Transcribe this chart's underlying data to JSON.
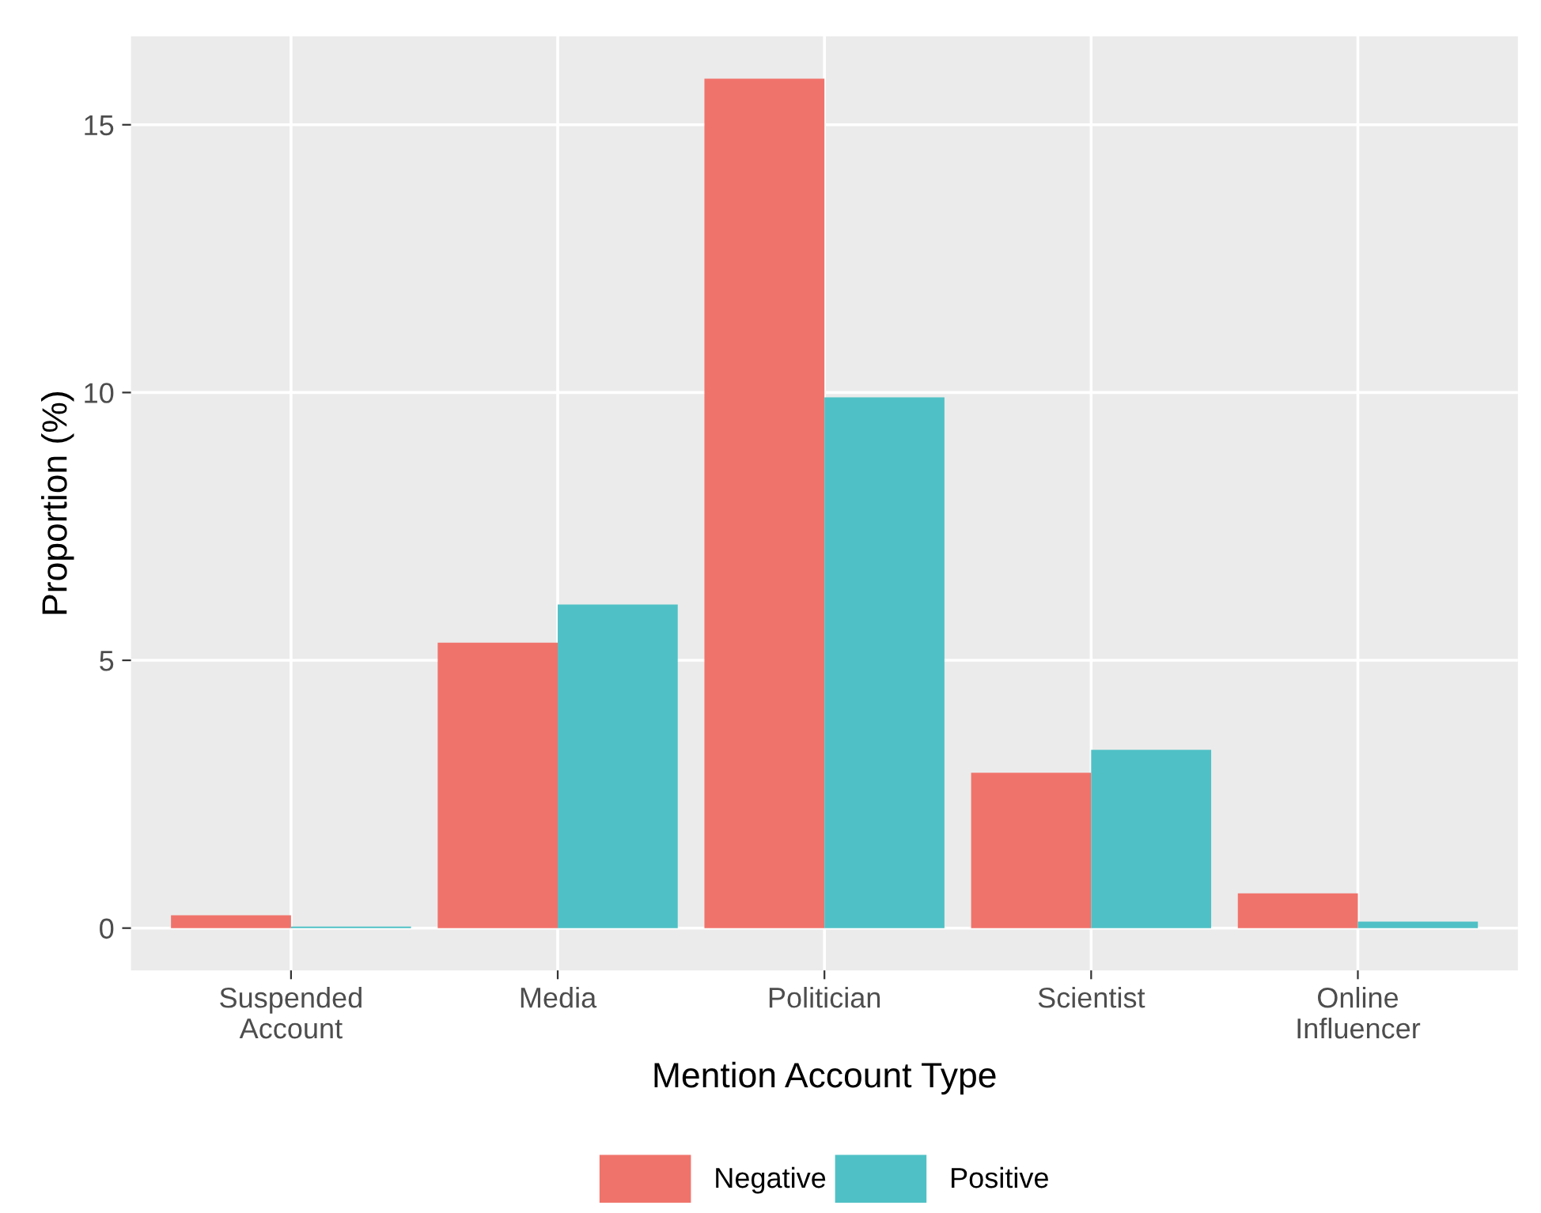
{
  "chart_data": {
    "type": "bar",
    "xlabel": "Mention Account Type",
    "ylabel": "Proportion (%)",
    "categories": [
      "Suspended\nAccount",
      "Media",
      "Politician",
      "Scientist",
      "Online\nInfluencer"
    ],
    "series": [
      {
        "name": "Negative",
        "color": "#f0736b",
        "values": [
          0.24,
          5.33,
          15.86,
          2.9,
          0.65
        ]
      },
      {
        "name": "Positive",
        "color": "#4fc1c6",
        "values": [
          0.03,
          6.04,
          9.91,
          3.33,
          0.12
        ]
      }
    ],
    "ylim": [
      -0.79,
      16.65
    ],
    "yticks": [
      0,
      5,
      10,
      15
    ],
    "grid": true,
    "legend": "bottom"
  }
}
